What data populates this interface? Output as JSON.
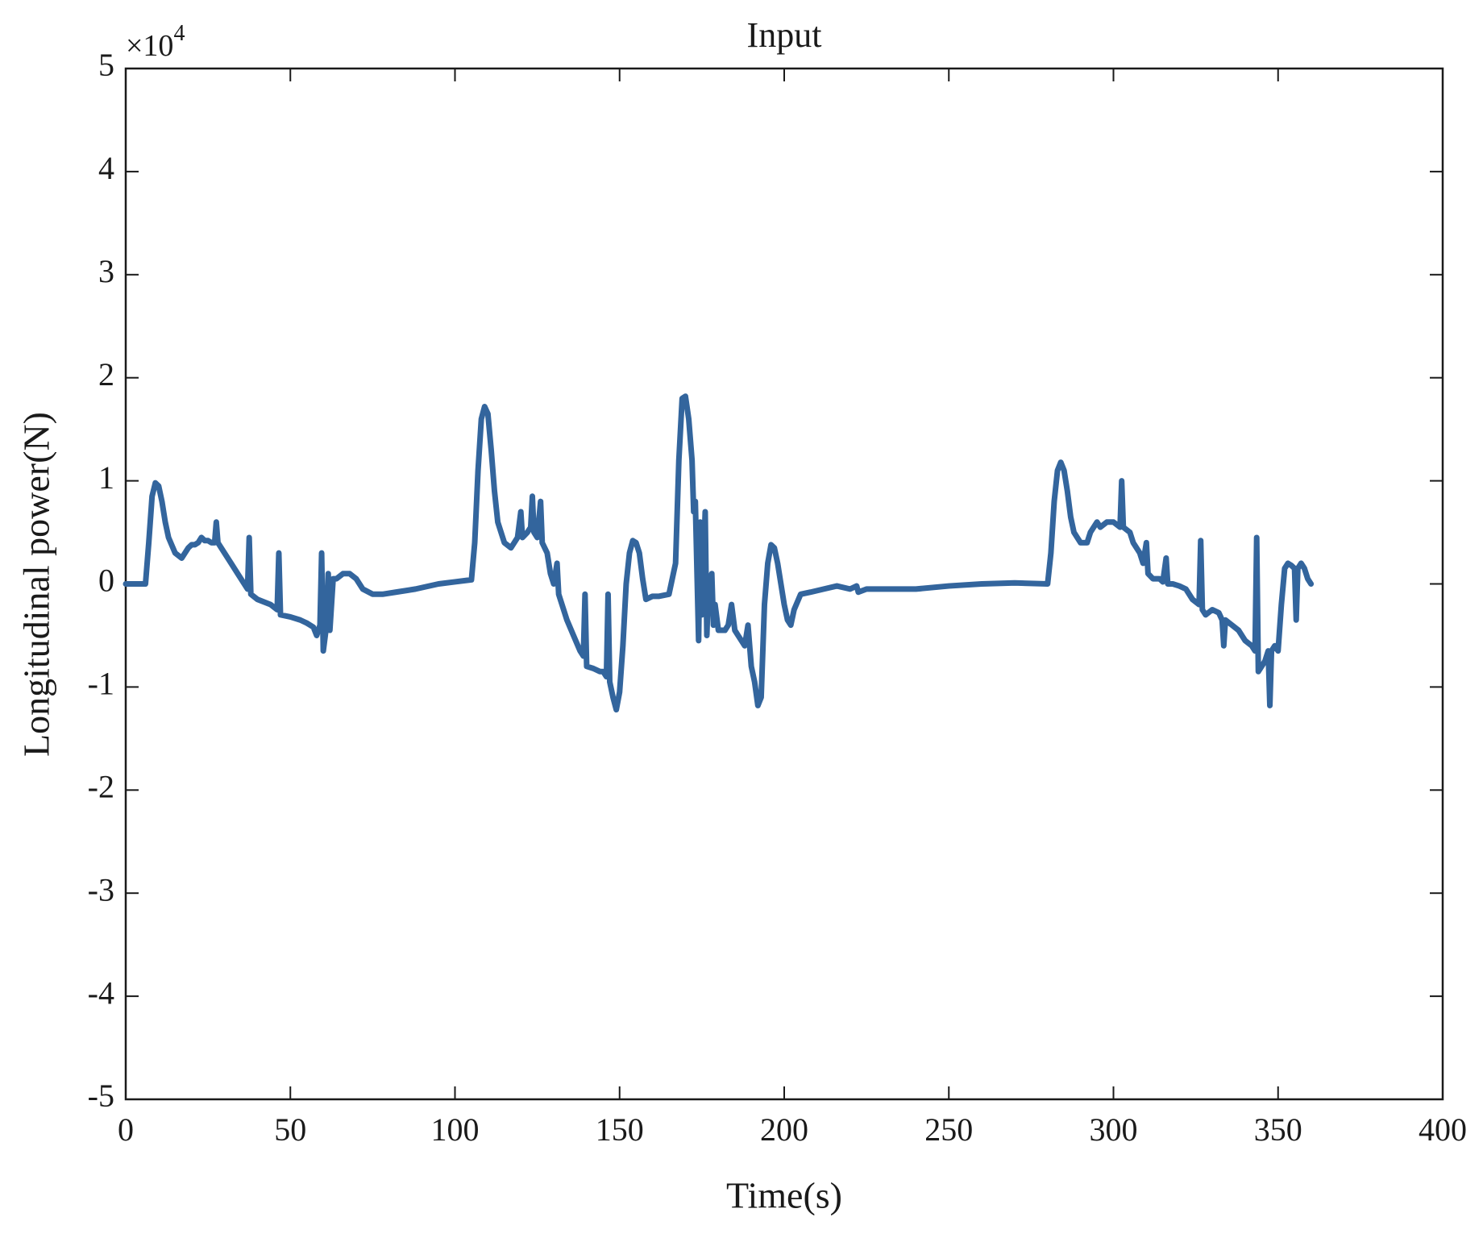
{
  "chart_data": {
    "type": "line",
    "title": "Input",
    "xlabel": "Time(s)",
    "ylabel": "Longitudinal power(N)",
    "y_multiplier": {
      "base": "×10",
      "exponent": "4"
    },
    "color": "#33659d",
    "xlim": [
      0,
      400
    ],
    "xticks": [
      0,
      50,
      100,
      150,
      200,
      250,
      300,
      350,
      400
    ],
    "ylim": [
      -5,
      5
    ],
    "yticks": [
      -5,
      -4,
      -3,
      -2,
      -1,
      0,
      1,
      2,
      3,
      4,
      5
    ],
    "x": [
      0,
      6,
      7,
      8,
      9,
      10,
      11,
      12,
      13,
      15,
      17,
      18,
      19,
      20,
      21,
      22,
      23,
      24,
      25,
      26,
      27,
      27.5,
      28,
      30,
      32,
      34,
      36,
      37,
      37.5,
      38,
      40,
      44,
      46,
      46.5,
      47,
      50,
      53,
      55,
      57,
      58,
      59,
      59.5,
      60,
      61,
      61.5,
      62,
      63,
      64,
      66,
      68,
      70,
      72,
      75,
      78,
      82,
      88,
      95,
      100,
      105,
      106,
      107,
      108,
      109,
      110,
      111,
      112,
      113,
      115,
      117,
      118,
      119,
      120,
      120.5,
      122,
      123,
      123.5,
      124,
      125,
      126,
      126.5,
      128,
      129,
      130,
      131,
      131.5,
      132,
      134,
      136,
      138,
      139,
      139.5,
      140,
      142,
      144,
      145,
      146,
      146.5,
      147,
      148,
      149,
      150,
      151,
      152,
      153,
      154,
      155,
      156,
      157,
      158,
      160,
      162,
      165,
      167,
      168,
      169,
      170,
      171,
      172,
      172.5,
      173,
      174,
      174.5,
      175,
      176,
      176.5,
      177,
      178,
      178.5,
      179,
      180,
      182,
      183,
      184,
      185,
      186,
      187,
      188,
      189,
      190,
      191,
      192,
      193,
      194,
      195,
      196,
      197,
      198,
      199,
      200,
      201,
      202,
      203,
      205,
      208,
      212,
      216,
      220,
      222,
      222.5,
      225,
      230,
      240,
      250,
      260,
      270,
      280,
      281,
      282,
      283,
      284,
      285,
      286,
      287,
      288,
      290,
      292,
      293,
      294,
      295,
      296,
      298,
      300,
      302,
      302.5,
      303,
      305,
      306,
      308,
      309,
      310,
      310.5,
      312,
      314,
      315,
      316,
      316.5,
      318,
      320,
      322,
      324,
      326,
      326.5,
      327,
      328,
      330,
      332,
      333,
      333.5,
      334,
      336,
      338,
      340,
      342,
      343,
      343.5,
      344,
      345,
      346,
      347,
      347.5,
      348,
      349,
      350,
      351,
      352,
      353,
      354,
      355,
      355.5,
      356,
      357,
      358,
      359,
      360
    ],
    "values": [
      0,
      0,
      0.4,
      0.85,
      0.98,
      0.95,
      0.8,
      0.6,
      0.45,
      0.3,
      0.25,
      0.3,
      0.35,
      0.38,
      0.38,
      0.4,
      0.45,
      0.42,
      0.42,
      0.4,
      0.4,
      0.6,
      0.4,
      0.3,
      0.2,
      0.1,
      0,
      -0.05,
      0.45,
      -0.1,
      -0.15,
      -0.2,
      -0.25,
      0.3,
      -0.3,
      -0.32,
      -0.35,
      -0.38,
      -0.42,
      -0.5,
      -0.4,
      0.3,
      -0.65,
      -0.4,
      0.1,
      -0.45,
      0.05,
      0.05,
      0.1,
      0.1,
      0.05,
      -0.05,
      -0.1,
      -0.1,
      -0.08,
      -0.05,
      0,
      0.02,
      0.04,
      0.4,
      1.1,
      1.6,
      1.72,
      1.65,
      1.3,
      0.9,
      0.6,
      0.4,
      0.35,
      0.4,
      0.45,
      0.7,
      0.45,
      0.5,
      0.55,
      0.85,
      0.5,
      0.45,
      0.8,
      0.4,
      0.3,
      0.1,
      0,
      0.2,
      -0.1,
      -0.15,
      -0.35,
      -0.5,
      -0.65,
      -0.7,
      -0.1,
      -0.8,
      -0.82,
      -0.85,
      -0.85,
      -0.9,
      -0.1,
      -0.95,
      -1.1,
      -1.22,
      -1.05,
      -0.6,
      0,
      0.3,
      0.42,
      0.4,
      0.3,
      0.05,
      -0.15,
      -0.12,
      -0.12,
      -0.1,
      0.2,
      1.2,
      1.8,
      1.82,
      1.6,
      1.2,
      0.7,
      0.8,
      -0.55,
      0.6,
      -0.3,
      0.7,
      -0.5,
      0,
      0.1,
      -0.4,
      -0.2,
      -0.45,
      -0.45,
      -0.4,
      -0.2,
      -0.45,
      -0.5,
      -0.55,
      -0.6,
      -0.4,
      -0.8,
      -0.95,
      -1.18,
      -1.1,
      -0.2,
      0.2,
      0.38,
      0.35,
      0.2,
      0,
      -0.2,
      -0.35,
      -0.4,
      -0.25,
      -0.1,
      -0.08,
      -0.05,
      -0.02,
      -0.05,
      -0.02,
      -0.08,
      -0.05,
      -0.05,
      -0.05,
      -0.02,
      0,
      0.01,
      0,
      0.3,
      0.8,
      1.1,
      1.18,
      1.1,
      0.9,
      0.65,
      0.5,
      0.4,
      0.4,
      0.5,
      0.55,
      0.6,
      0.55,
      0.6,
      0.6,
      0.55,
      1,
      0.55,
      0.5,
      0.4,
      0.3,
      0.2,
      0.4,
      0.1,
      0.05,
      0.05,
      0.02,
      0.25,
      0,
      0,
      -0.02,
      -0.05,
      -0.15,
      -0.2,
      0.42,
      -0.25,
      -0.3,
      -0.25,
      -0.28,
      -0.35,
      -0.6,
      -0.35,
      -0.4,
      -0.45,
      -0.55,
      -0.6,
      -0.65,
      0.45,
      -0.85,
      -0.8,
      -0.75,
      -0.65,
      -1.18,
      -0.65,
      -0.6,
      -0.65,
      -0.2,
      0.15,
      0.2,
      0.18,
      0.15,
      -0.35,
      0.15,
      0.2,
      0.15,
      0.05,
      0
    ]
  }
}
